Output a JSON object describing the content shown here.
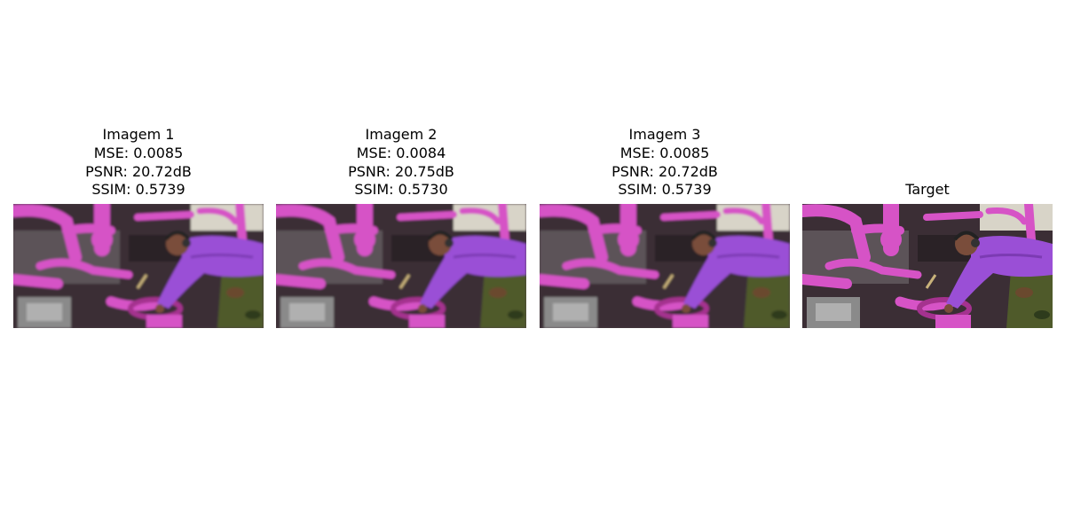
{
  "figure": {
    "panels": [
      {
        "title": "Imagem 1",
        "metrics": [
          "MSE: 0.0085",
          "PSNR: 20.72dB",
          "SSIM: 0.5739"
        ],
        "blurred": true
      },
      {
        "title": "Imagem 2",
        "metrics": [
          "MSE: 0.0084",
          "PSNR: 20.75dB",
          "SSIM: 0.5730"
        ],
        "blurred": true
      },
      {
        "title": "Imagem 3",
        "metrics": [
          "MSE: 0.0085",
          "PSNR: 20.72dB",
          "SSIM: 0.5739"
        ],
        "blurred": true
      },
      {
        "title": "Target",
        "metrics": [],
        "blurred": false
      }
    ],
    "image_palette": {
      "pipes": "#d653c6",
      "pipes_dark": "#a5308f",
      "shirt": "#9a4fd6",
      "camo_green": "#4f5a2c",
      "camo_brown": "#6b4a2d",
      "skin": "#7a4e3a",
      "machine_grey": "#8a8a8a",
      "background_dark": "#3a2f36"
    }
  }
}
